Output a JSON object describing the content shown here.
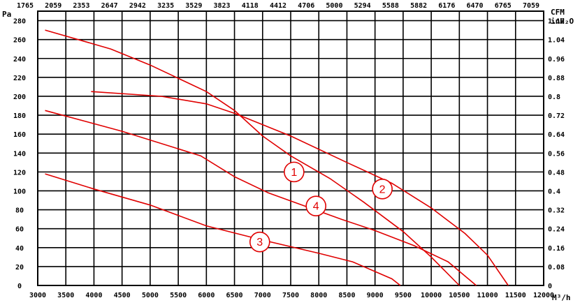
{
  "chart_data": {
    "type": "line",
    "title": "",
    "x_bottom": {
      "unit": "M³/h",
      "ticks": [
        3000,
        3500,
        4000,
        4500,
        5000,
        5500,
        6000,
        6500,
        7000,
        7500,
        8000,
        8500,
        9000,
        9500,
        10000,
        10500,
        11000,
        11500,
        12000
      ],
      "range": [
        3000,
        12000
      ]
    },
    "x_top": {
      "unit": "CFM",
      "ticks": [
        "1765",
        "2059",
        "2353",
        "2647",
        "2942",
        "3235",
        "3529",
        "3823",
        "4118",
        "4412",
        "4706",
        "5000",
        "5294",
        "5588",
        "5882",
        "6176",
        "6470",
        "6765",
        "7059"
      ]
    },
    "y_left": {
      "unit": "Pa",
      "ticks": [
        0,
        20,
        40,
        60,
        80,
        100,
        120,
        140,
        160,
        180,
        200,
        220,
        240,
        260,
        280
      ],
      "range": [
        0,
        290
      ]
    },
    "y_right": {
      "unit_line1": "CFM",
      "unit_line2": "inH₂O",
      "ticks": [
        "0",
        "0.08",
        "0.16",
        "0.24",
        "0.32",
        "0.4",
        "0.48",
        "0.56",
        "0.64",
        "0.72",
        "0.8",
        "0.88",
        "0.96",
        "1.04",
        "1.12"
      ]
    },
    "grid": true,
    "series": [
      {
        "label": "1",
        "color": "#e00000",
        "points": [
          [
            3130,
            270
          ],
          [
            4300,
            250
          ],
          [
            5000,
            233
          ],
          [
            6000,
            205
          ],
          [
            6500,
            185
          ],
          [
            7000,
            158
          ],
          [
            7500,
            137
          ],
          [
            8200,
            113
          ],
          [
            8800,
            88
          ],
          [
            9500,
            57
          ],
          [
            10000,
            30
          ],
          [
            10500,
            0
          ]
        ],
        "marker": [
          7560,
          120
        ]
      },
      {
        "label": "2",
        "color": "#e00000",
        "points": [
          [
            3950,
            205
          ],
          [
            5200,
            200
          ],
          [
            6000,
            192
          ],
          [
            6500,
            182
          ],
          [
            7500,
            158
          ],
          [
            8500,
            130
          ],
          [
            9300,
            108
          ],
          [
            10000,
            82
          ],
          [
            10600,
            55
          ],
          [
            11000,
            32
          ],
          [
            11370,
            0
          ]
        ],
        "marker": [
          9130,
          102
        ]
      },
      {
        "label": "3",
        "color": "#e00000",
        "points": [
          [
            3130,
            118
          ],
          [
            4000,
            102
          ],
          [
            5000,
            85
          ],
          [
            6000,
            63
          ],
          [
            7000,
            48
          ],
          [
            8000,
            34
          ],
          [
            8600,
            25
          ],
          [
            9300,
            7
          ],
          [
            9450,
            0
          ]
        ],
        "marker": [
          6950,
          46
        ]
      },
      {
        "label": "4",
        "color": "#e00000",
        "points": [
          [
            3130,
            185
          ],
          [
            4500,
            163
          ],
          [
            5900,
            137
          ],
          [
            6500,
            115
          ],
          [
            7100,
            98
          ],
          [
            7700,
            85
          ],
          [
            8400,
            70
          ],
          [
            9000,
            58
          ],
          [
            9700,
            42
          ],
          [
            10300,
            25
          ],
          [
            10800,
            0
          ]
        ],
        "marker": [
          7950,
          84
        ]
      }
    ]
  }
}
